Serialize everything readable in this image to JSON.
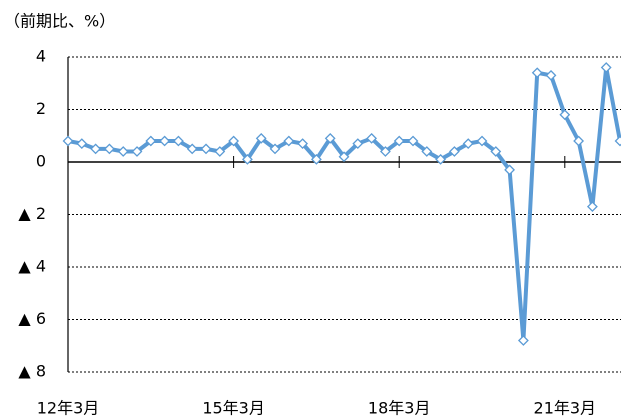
{
  "chart_data": {
    "type": "line",
    "y_axis_label": "（前期比、%）",
    "categories": [
      "12年3月",
      null,
      null,
      null,
      null,
      null,
      null,
      null,
      null,
      null,
      null,
      null,
      "15年3月",
      null,
      null,
      null,
      null,
      null,
      null,
      null,
      null,
      null,
      null,
      null,
      "18年3月",
      null,
      null,
      null,
      null,
      null,
      null,
      null,
      null,
      null,
      null,
      null,
      "21年3月",
      null,
      null,
      null,
      null
    ],
    "series": [
      {
        "color": "#5b9bd5",
        "values": [
          0.8,
          0.7,
          0.5,
          0.5,
          0.4,
          0.4,
          0.8,
          0.8,
          0.8,
          0.5,
          0.5,
          0.4,
          0.8,
          0.1,
          0.9,
          0.5,
          0.8,
          0.7,
          0.1,
          0.9,
          0.2,
          0.7,
          0.9,
          0.4,
          0.8,
          0.8,
          0.4,
          0.1,
          0.4,
          0.7,
          0.8,
          0.4,
          -0.3,
          -6.8,
          3.4,
          3.3,
          1.8,
          0.8,
          -1.7,
          3.6,
          0.8
        ]
      }
    ],
    "ylim": [
      -8,
      4
    ],
    "yticks": [
      4,
      2,
      0,
      {
        "value": -2,
        "label": "▲ 2"
      },
      {
        "value": -4,
        "label": "▲ 4"
      },
      {
        "value": -6,
        "label": "▲ 6"
      },
      {
        "value": -8,
        "label": "▲ 8"
      }
    ],
    "grid": true
  }
}
